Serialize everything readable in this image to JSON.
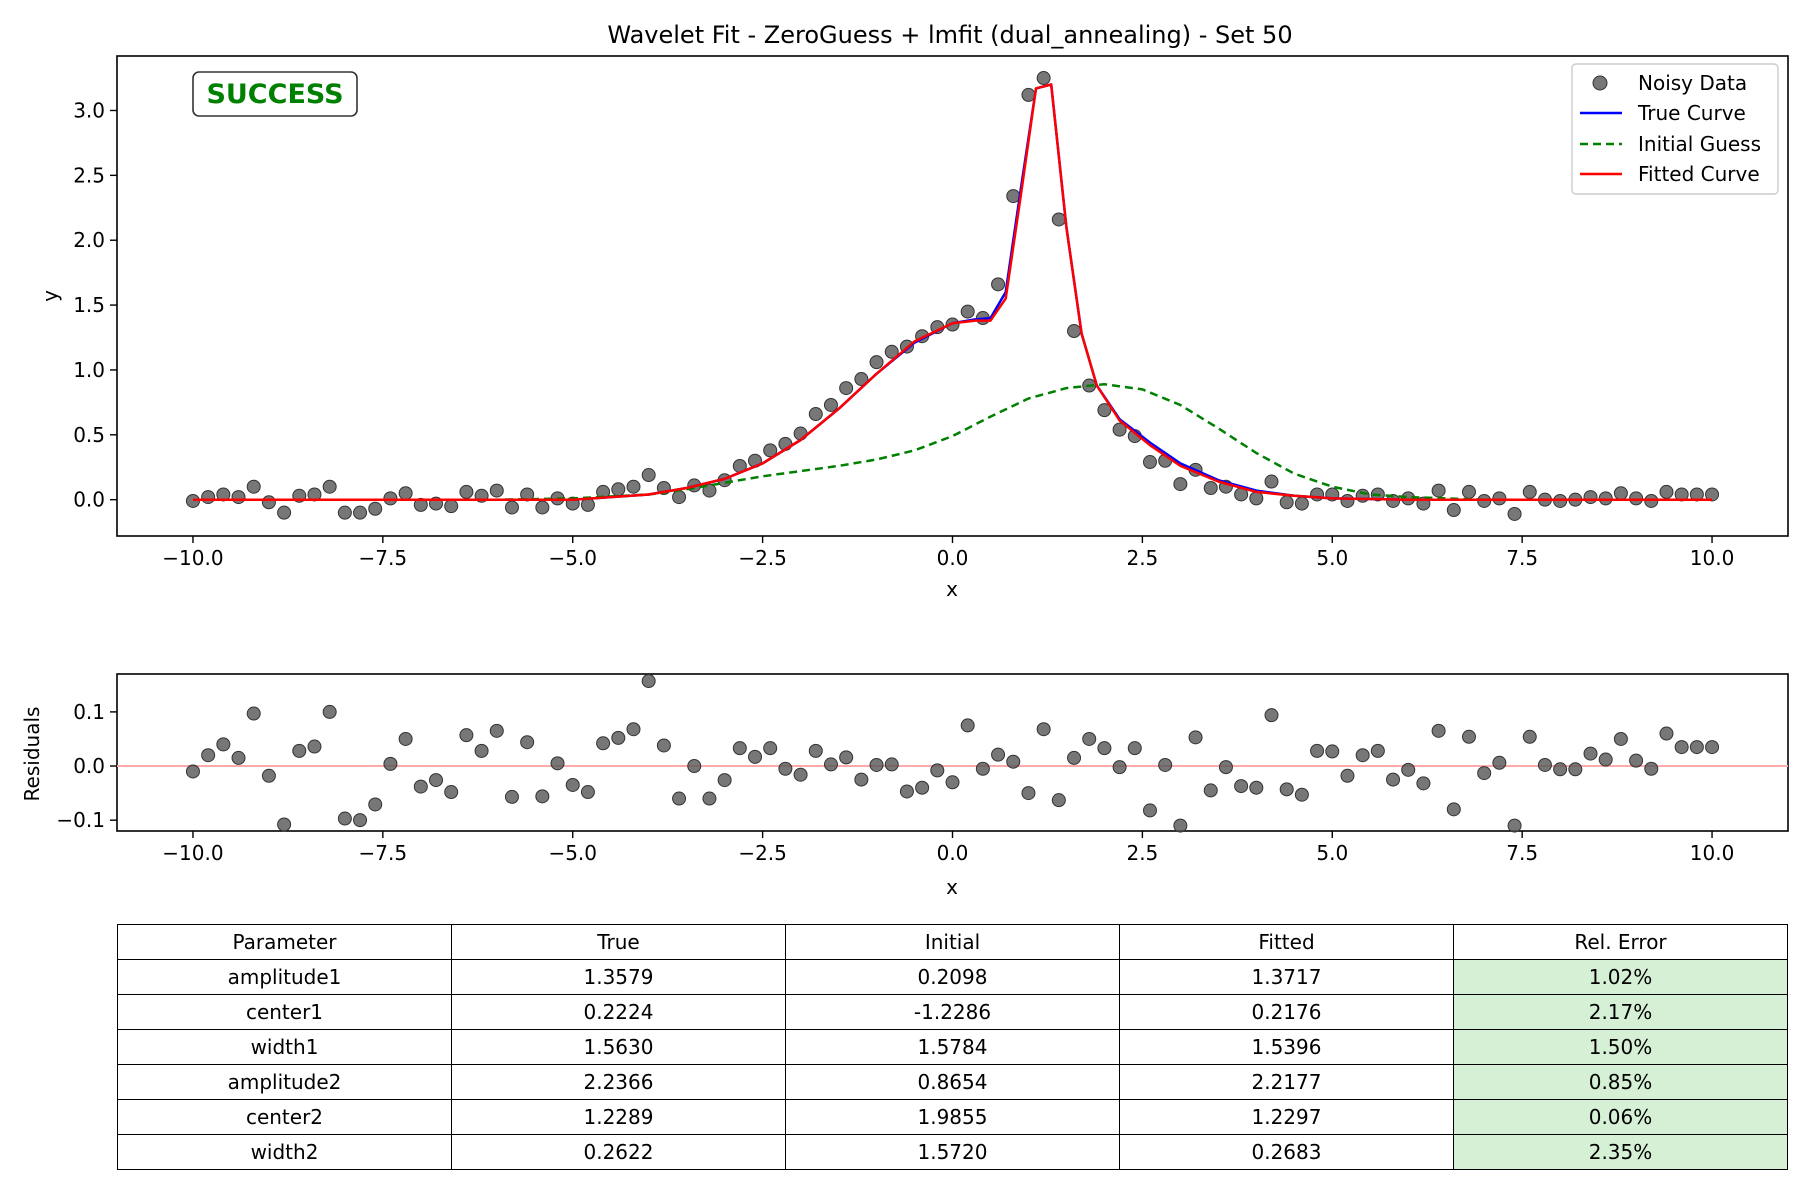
{
  "chart_data": [
    {
      "type": "scatter",
      "title": "Wavelet Fit - ZeroGuess + lmfit (dual_annealing) - Set 50",
      "xlabel": "x",
      "ylabel": "y",
      "xlim": [
        -11,
        11
      ],
      "ylim": [
        -0.28,
        3.42
      ],
      "xticks": [
        -10,
        -7.5,
        -5,
        -2.5,
        0,
        2.5,
        5,
        7.5,
        10
      ],
      "xtick_labels": [
        "−10.0",
        "−7.5",
        "−5.0",
        "−2.5",
        "0.0",
        "2.5",
        "5.0",
        "7.5",
        "10.0"
      ],
      "yticks": [
        0,
        0.5,
        1,
        1.5,
        2,
        2.5,
        3
      ],
      "ytick_labels": [
        "0.0",
        "0.5",
        "1.0",
        "1.5",
        "2.0",
        "2.5",
        "3.0"
      ],
      "legend_position": "top-right",
      "status_badge": "SUCCESS",
      "series": [
        {
          "name": "Noisy Data",
          "kind": "points",
          "color": "#555555",
          "x": [
            -10,
            -9.8,
            -9.6,
            -9.4,
            -9.2,
            -9,
            -8.8,
            -8.6,
            -8.4,
            -8.2,
            -8,
            -7.8,
            -7.6,
            -7.4,
            -7.2,
            -7,
            -6.8,
            -6.6,
            -6.4,
            -6.2,
            -6,
            -5.8,
            -5.6,
            -5.4,
            -5.2,
            -5,
            -4.8,
            -4.6,
            -4.4,
            -4.2,
            -4,
            -3.8,
            -3.6,
            -3.4,
            -3.2,
            -3,
            -2.8,
            -2.6,
            -2.4,
            -2.2,
            -2,
            -1.8,
            -1.6,
            -1.4,
            -1.2,
            -1,
            -0.8,
            -0.6,
            -0.4,
            -0.2,
            0,
            0.2,
            0.4,
            0.6,
            0.8,
            1,
            1.2,
            1.4,
            1.6,
            1.8,
            2,
            2.2,
            2.4,
            2.6,
            2.8,
            3,
            3.2,
            3.4,
            3.6,
            3.8,
            4,
            4.2,
            4.4,
            4.6,
            4.8,
            5,
            5.2,
            5.4,
            5.6,
            5.8,
            6,
            6.2,
            6.4,
            6.6,
            6.8,
            7,
            7.2,
            7.4,
            7.6,
            7.8,
            8,
            8.2,
            8.4,
            8.6,
            8.8,
            9,
            9.2,
            9.4,
            9.6,
            9.8,
            10
          ],
          "y": [
            -0.01,
            0.02,
            0.04,
            0.02,
            0.1,
            -0.02,
            -0.1,
            0.03,
            0.04,
            0.1,
            -0.1,
            -0.1,
            -0.07,
            0.01,
            0.05,
            -0.04,
            -0.03,
            -0.05,
            0.06,
            0.03,
            0.07,
            -0.06,
            0.04,
            -0.06,
            0.01,
            -0.03,
            -0.04,
            0.06,
            0.08,
            0.1,
            0.19,
            0.09,
            0.02,
            0.11,
            0.07,
            0.15,
            0.26,
            0.3,
            0.38,
            0.43,
            0.51,
            0.66,
            0.73,
            0.86,
            0.93,
            1.06,
            1.14,
            1.18,
            1.26,
            1.33,
            1.35,
            1.45,
            1.4,
            1.66,
            2.34,
            3.12,
            3.25,
            2.16,
            1.3,
            0.88,
            0.69,
            0.54,
            0.49,
            0.29,
            0.3,
            0.12,
            0.23,
            0.09,
            0.1,
            0.04,
            0.01,
            0.14,
            -0.02,
            -0.03,
            0.04,
            0.04,
            -0.01,
            0.03,
            0.04,
            -0.01,
            0.01,
            -0.03,
            0.07,
            -0.08,
            0.06,
            -0.01,
            0.01,
            -0.11,
            0.06,
            0,
            -0.01,
            0,
            0.02,
            0.01,
            0.05,
            0.01,
            -0.01,
            0.06,
            0.04,
            0.04,
            0.04
          ]
        },
        {
          "name": "True Curve",
          "kind": "line",
          "color": "#0000ff",
          "x": [
            -10,
            -5,
            -4,
            -3.5,
            -3,
            -2.5,
            -2,
            -1.5,
            -1,
            -0.5,
            0,
            0.3,
            0.5,
            0.7,
            0.9,
            1.1,
            1.3,
            1.5,
            1.7,
            1.9,
            2.2,
            2.6,
            3,
            3.5,
            4,
            4.5,
            5,
            6,
            7,
            8,
            10
          ],
          "y": [
            0,
            0,
            0.04,
            0.09,
            0.16,
            0.28,
            0.46,
            0.7,
            0.97,
            1.21,
            1.36,
            1.39,
            1.4,
            1.6,
            2.4,
            3.17,
            3.2,
            2.1,
            1.28,
            0.88,
            0.62,
            0.44,
            0.28,
            0.15,
            0.07,
            0.03,
            0.01,
            0,
            0,
            0,
            0
          ]
        },
        {
          "name": "Initial Guess",
          "kind": "dashed",
          "color": "#008000",
          "x": [
            -10,
            -6,
            -5,
            -4,
            -3.5,
            -3,
            -2.5,
            -2,
            -1.5,
            -1,
            -0.5,
            0,
            0.5,
            1,
            1.5,
            2,
            2.5,
            3,
            3.5,
            4,
            4.5,
            5,
            5.5,
            6,
            6.5,
            7,
            8,
            10
          ],
          "y": [
            0,
            0,
            0.01,
            0.04,
            0.08,
            0.13,
            0.18,
            0.22,
            0.26,
            0.31,
            0.38,
            0.49,
            0.64,
            0.78,
            0.86,
            0.89,
            0.85,
            0.73,
            0.55,
            0.36,
            0.2,
            0.1,
            0.04,
            0.02,
            0.01,
            0,
            0,
            0
          ]
        },
        {
          "name": "Fitted Curve",
          "kind": "line",
          "color": "#ff0000",
          "x": [
            -10,
            -5,
            -4,
            -3.5,
            -3,
            -2.5,
            -2,
            -1.5,
            -1,
            -0.5,
            0,
            0.3,
            0.5,
            0.7,
            0.9,
            1.1,
            1.3,
            1.5,
            1.7,
            1.9,
            2.2,
            2.6,
            3,
            3.5,
            4,
            4.5,
            5,
            6,
            7,
            8,
            10
          ],
          "y": [
            0,
            0,
            0.04,
            0.09,
            0.16,
            0.28,
            0.46,
            0.7,
            0.97,
            1.22,
            1.36,
            1.38,
            1.38,
            1.55,
            2.35,
            3.17,
            3.2,
            2.1,
            1.28,
            0.88,
            0.61,
            0.42,
            0.26,
            0.14,
            0.06,
            0.03,
            0.01,
            0,
            0,
            0,
            0
          ]
        }
      ]
    },
    {
      "type": "scatter",
      "title": "",
      "xlabel": "x",
      "ylabel": "Residuals",
      "xlim": [
        -11,
        11
      ],
      "ylim": [
        -0.12,
        0.17
      ],
      "xticks": [
        -10,
        -7.5,
        -5,
        -2.5,
        0,
        2.5,
        5,
        7.5,
        10
      ],
      "xtick_labels": [
        "−10.0",
        "−7.5",
        "−5.0",
        "−2.5",
        "0.0",
        "2.5",
        "5.0",
        "7.5",
        "10.0"
      ],
      "yticks": [
        -0.1,
        0,
        0.1
      ],
      "ytick_labels": [
        "−0.1",
        "0.0",
        "0.1"
      ],
      "zero_line_color": "#ffaaaa",
      "series": [
        {
          "kind": "points",
          "color": "#555555",
          "x": [
            -10,
            -9.8,
            -9.6,
            -9.4,
            -9.2,
            -9,
            -8.8,
            -8.6,
            -8.4,
            -8.2,
            -8,
            -7.8,
            -7.6,
            -7.4,
            -7.2,
            -7,
            -6.8,
            -6.6,
            -6.4,
            -6.2,
            -6,
            -5.8,
            -5.6,
            -5.4,
            -5.2,
            -5,
            -4.8,
            -4.6,
            -4.4,
            -4.2,
            -4,
            -3.8,
            -3.6,
            -3.4,
            -3.2,
            -3,
            -2.8,
            -2.6,
            -2.4,
            -2.2,
            -2,
            -1.8,
            -1.6,
            -1.4,
            -1.2,
            -1,
            -0.8,
            -0.6,
            -0.4,
            -0.2,
            0,
            0.2,
            0.4,
            0.6,
            0.8,
            1,
            1.2,
            1.4,
            1.6,
            1.8,
            2,
            2.2,
            2.4,
            2.6,
            2.8,
            3,
            3.2,
            3.4,
            3.6,
            3.8,
            4,
            4.2,
            4.4,
            4.6,
            4.8,
            5,
            5.2,
            5.4,
            5.6,
            5.8,
            6,
            6.2,
            6.4,
            6.6,
            6.8,
            7,
            7.2,
            7.4,
            7.6,
            7.8,
            8,
            8.2,
            8.4,
            8.6,
            8.8,
            9,
            9.2,
            9.4,
            9.6,
            9.8,
            10
          ],
          "y": [
            -0.01,
            0.02,
            0.04,
            0.015,
            0.097,
            -0.018,
            -0.108,
            0.028,
            0.036,
            0.1,
            -0.097,
            -0.1,
            -0.071,
            0.004,
            0.05,
            -0.038,
            -0.026,
            -0.048,
            0.057,
            0.028,
            0.065,
            -0.057,
            0.044,
            -0.056,
            0.005,
            -0.035,
            -0.048,
            0.042,
            0.052,
            0.068,
            0.157,
            0.038,
            -0.06,
            0,
            -0.06,
            -0.026,
            0.033,
            0.017,
            0.033,
            -0.005,
            -0.016,
            0.028,
            0.003,
            0.016,
            -0.025,
            0.002,
            0.003,
            -0.047,
            -0.04,
            -0.008,
            -0.03,
            0.075,
            -0.005,
            0.021,
            0.008,
            -0.05,
            0.068,
            -0.063,
            0.015,
            0.05,
            0.033,
            -0.002,
            0.033,
            -0.082,
            0.002,
            -0.11,
            0.053,
            -0.045,
            -0.002,
            -0.037,
            -0.04,
            0.094,
            -0.043,
            -0.053,
            0.028,
            0.027,
            -0.018,
            0.02,
            0.028,
            -0.025,
            -0.007,
            -0.032,
            0.065,
            -0.08,
            0.054,
            -0.013,
            0.006,
            -0.11,
            0.054,
            0.002,
            -0.006,
            -0.006,
            0.023,
            0.012,
            0.05,
            0.01,
            -0.005,
            0.06,
            0.035,
            0.035,
            0.035
          ]
        }
      ]
    }
  ],
  "table": {
    "headers": [
      "Parameter",
      "True",
      "Initial",
      "Fitted",
      "Rel. Error"
    ],
    "rows": [
      [
        "amplitude1",
        "1.3579",
        "0.2098",
        "1.3717",
        "1.02%"
      ],
      [
        "center1",
        "0.2224",
        "-1.2286",
        "0.2176",
        "2.17%"
      ],
      [
        "width1",
        "1.5630",
        "1.5784",
        "1.5396",
        "1.50%"
      ],
      [
        "amplitude2",
        "2.2366",
        "0.8654",
        "2.2177",
        "0.85%"
      ],
      [
        "center2",
        "1.2289",
        "1.9855",
        "1.2297",
        "0.06%"
      ],
      [
        "width2",
        "0.2622",
        "1.5720",
        "0.2683",
        "2.35%"
      ]
    ],
    "error_cell_color": "#d6f0d6"
  }
}
